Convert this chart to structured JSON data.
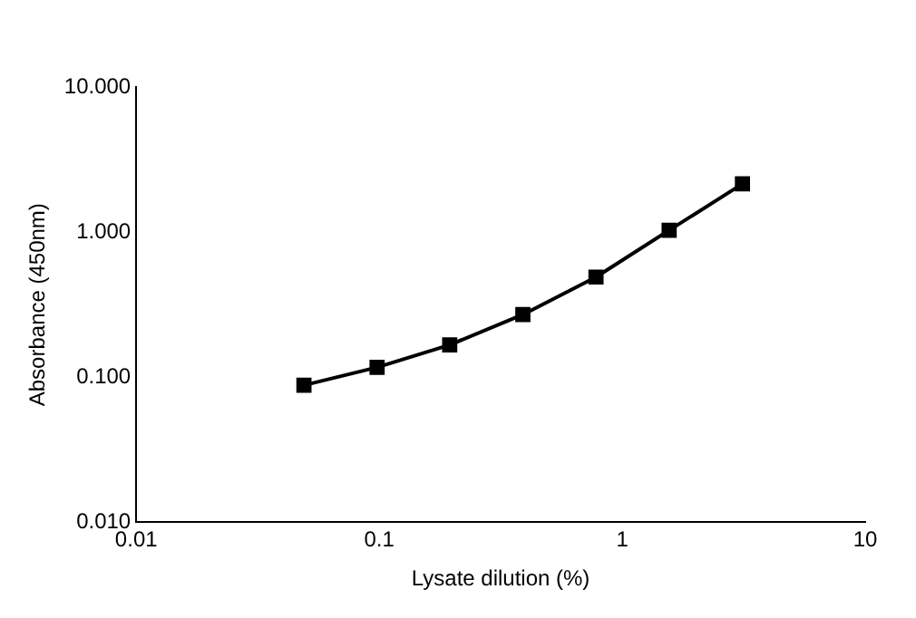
{
  "chart_data": {
    "type": "line",
    "xlabel": "Lysate dilution (%)",
    "ylabel": "Absorbance (450nm)",
    "x": [
      0.049,
      0.098,
      0.195,
      0.39,
      0.78,
      1.56,
      3.125
    ],
    "series": [
      {
        "color": "#000000",
        "values": [
          0.088,
          0.117,
          0.167,
          0.27,
          0.49,
          1.03,
          2.15
        ]
      }
    ],
    "log": "xy",
    "xlim": [
      0.01,
      10
    ],
    "xticks": [
      0.01,
      0.1,
      1,
      10
    ],
    "ylim": [
      0.01,
      10
    ],
    "yticks": [
      {
        "value": 0.01,
        "label": "0.010"
      },
      {
        "value": 0.1,
        "label": "0.100"
      },
      {
        "value": 1,
        "label": "1.000"
      },
      {
        "value": 10,
        "label": "10.000"
      }
    ],
    "grid": false,
    "legend": false,
    "marker": "square",
    "line_style": "solid"
  }
}
